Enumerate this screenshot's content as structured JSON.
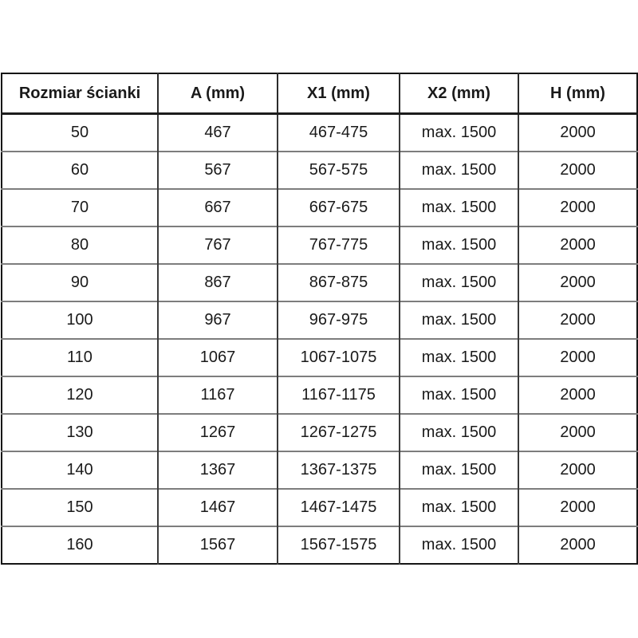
{
  "colors": {
    "background": "#ffffff",
    "text": "#1a1a1a",
    "outer_border": "#161616",
    "column_line": "#3a3a3a",
    "row_line": "#7d7d7d"
  },
  "chart_data": {
    "type": "table",
    "columns": [
      "Rozmiar ścianki",
      "A (mm)",
      "X1 (mm)",
      "X2 (mm)",
      "H (mm)"
    ],
    "rows": [
      [
        "50",
        "467",
        "467-475",
        "max. 1500",
        "2000"
      ],
      [
        "60",
        "567",
        "567-575",
        "max. 1500",
        "2000"
      ],
      [
        "70",
        "667",
        "667-675",
        "max. 1500",
        "2000"
      ],
      [
        "80",
        "767",
        "767-775",
        "max. 1500",
        "2000"
      ],
      [
        "90",
        "867",
        "867-875",
        "max. 1500",
        "2000"
      ],
      [
        "100",
        "967",
        "967-975",
        "max. 1500",
        "2000"
      ],
      [
        "110",
        "1067",
        "1067-1075",
        "max. 1500",
        "2000"
      ],
      [
        "120",
        "1167",
        "1167-1175",
        "max. 1500",
        "2000"
      ],
      [
        "130",
        "1267",
        "1267-1275",
        "max. 1500",
        "2000"
      ],
      [
        "140",
        "1367",
        "1367-1375",
        "max. 1500",
        "2000"
      ],
      [
        "150",
        "1467",
        "1467-1475",
        "max. 1500",
        "2000"
      ],
      [
        "160",
        "1567",
        "1567-1575",
        "max. 1500",
        "2000"
      ]
    ]
  }
}
